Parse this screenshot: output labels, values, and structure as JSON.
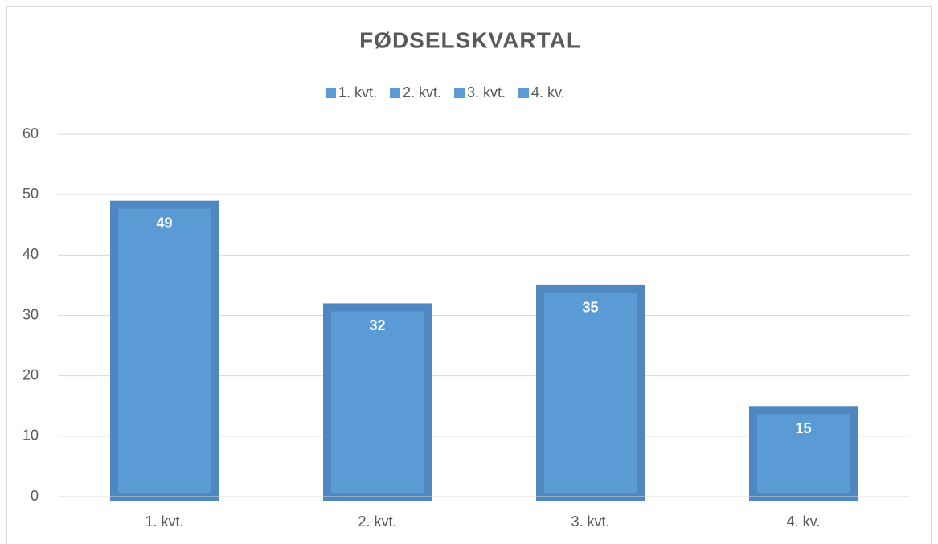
{
  "chart_data": {
    "type": "bar",
    "title": "FØDSELSKVARTAL",
    "categories": [
      "1. kvt.",
      "2. kvt.",
      "3. kvt.",
      "4. kv."
    ],
    "values": [
      49,
      32,
      35,
      15
    ],
    "color": "#5b9bd5",
    "ylim": [
      0,
      60
    ],
    "yticks": [
      0,
      10,
      20,
      30,
      40,
      50,
      60
    ],
    "grid": true,
    "legend": "top"
  }
}
